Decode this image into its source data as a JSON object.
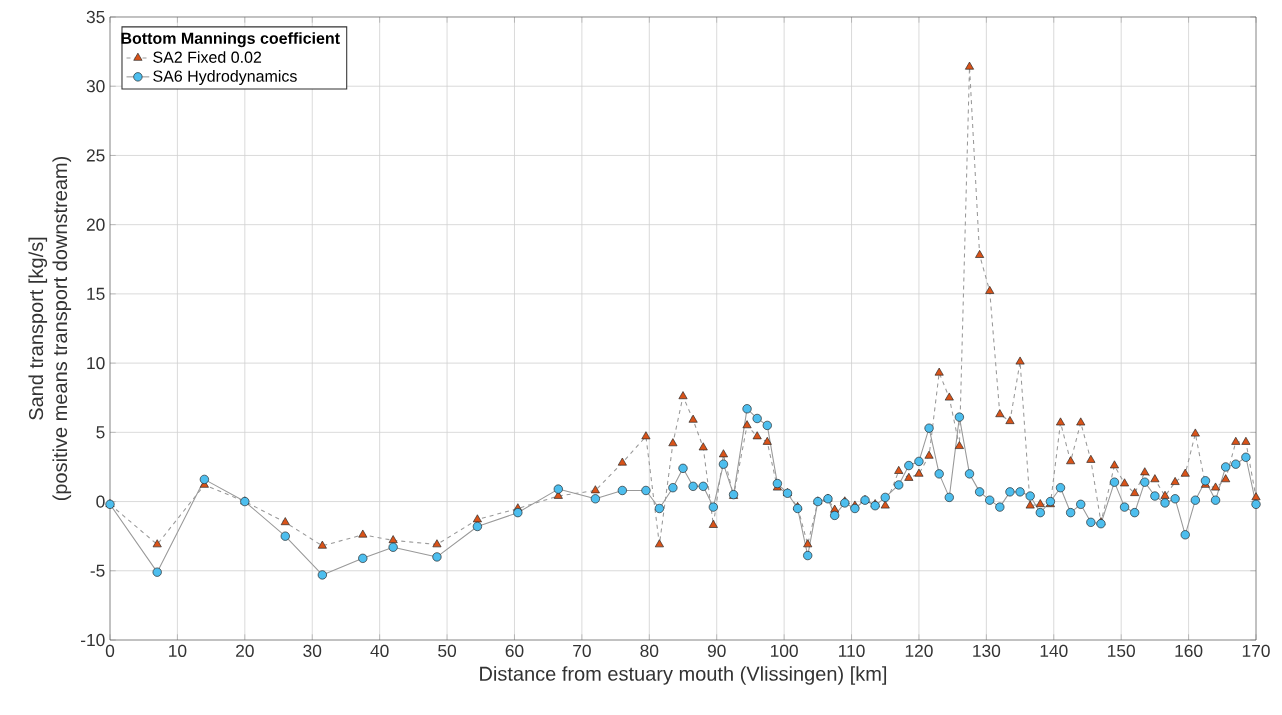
{
  "chart_data": {
    "type": "line",
    "xlabel": "Distance from estuary mouth (Vlissingen) [km]",
    "ylabel": "Sand transport [kg/s]\n(positive means transport downstream)",
    "legend_title": "**Bottom Mannings coefficient**",
    "legend": "top left",
    "grid": true,
    "x": [
      0,
      7,
      14,
      20,
      26,
      31.5,
      37.5,
      42,
      48.5,
      54.5,
      60.5,
      66.5,
      72,
      76,
      79.5,
      81.5,
      83.5,
      85,
      86.5,
      88,
      89.5,
      91,
      92.5,
      94.5,
      96,
      97.5,
      99,
      100.5,
      102,
      103.5,
      105,
      106.5,
      107.5,
      109,
      110.5,
      112,
      113.5,
      115,
      117,
      118.5,
      120,
      121.5,
      123,
      124.5,
      126,
      127.5,
      129,
      130.5,
      132,
      133.5,
      135,
      136.5,
      138,
      139.5,
      141,
      142.5,
      144,
      145.5,
      147,
      149,
      150.5,
      152,
      153.5,
      155,
      156.5,
      158,
      159.5,
      161,
      162.5,
      164,
      165.5,
      167,
      168.5,
      170
    ],
    "series": [
      {
        "name": "SA2 Fixed 0.02",
        "color": "#d95319",
        "marker": "triangle",
        "line_style": "dashed",
        "values": [
          -0.2,
          -3.1,
          1.2,
          0,
          -1.5,
          -3.2,
          -2.4,
          -2.8,
          -3.1,
          -1.3,
          -0.5,
          0.4,
          0.8,
          2.8,
          4.7,
          -3.1,
          4.2,
          7.6,
          5.9,
          3.9,
          -1.7,
          3.4,
          0.4,
          5.5,
          4.7,
          4.3,
          1.0,
          0.6,
          -0.4,
          -3.1,
          0.0,
          0.2,
          -0.6,
          0.0,
          -0.3,
          0.1,
          -0.2,
          -0.3,
          2.2,
          1.7,
          2.0,
          3.3,
          9.3,
          7.5,
          4.0,
          31.4,
          17.8,
          15.2,
          6.3,
          5.8,
          10.1,
          -0.3,
          -0.2,
          -0.2,
          5.7,
          2.9,
          5.7,
          3.0,
          -1.5,
          2.6,
          1.3,
          0.6,
          2.1,
          1.6,
          0.4,
          1.4,
          2.0,
          4.9,
          1.2,
          1.0,
          1.6,
          4.3,
          4.3,
          0.3
        ]
      },
      {
        "name": "SA6 Hydrodynamics",
        "color": "#4dbeee",
        "marker": "circle",
        "line_style": "solid",
        "values": [
          -0.2,
          -5.1,
          1.6,
          0,
          -2.5,
          -5.3,
          -4.1,
          -3.3,
          -4.0,
          -1.8,
          -0.8,
          0.9,
          0.2,
          0.8,
          0.8,
          -0.5,
          1.0,
          2.4,
          1.1,
          1.1,
          -0.4,
          2.7,
          0.5,
          6.7,
          6.0,
          5.5,
          1.3,
          0.6,
          -0.5,
          -3.9,
          0.0,
          0.2,
          -1.0,
          -0.1,
          -0.5,
          0.1,
          -0.3,
          0.3,
          1.2,
          2.6,
          2.9,
          5.3,
          2.0,
          0.3,
          6.1,
          2.0,
          0.7,
          0.1,
          -0.4,
          0.7,
          0.7,
          0.4,
          -0.8,
          0.0,
          1.0,
          -0.8,
          -0.2,
          -1.5,
          -1.6,
          1.4,
          -0.4,
          -0.8,
          1.4,
          0.4,
          -0.1,
          0.2,
          -2.4,
          0.1,
          1.5,
          0.1,
          2.5,
          2.7,
          3.2,
          -0.2
        ]
      }
    ],
    "xlim": [
      0,
      170
    ],
    "xticks": [
      0,
      10,
      20,
      30,
      40,
      50,
      60,
      70,
      80,
      90,
      100,
      110,
      120,
      130,
      140,
      150,
      160,
      170
    ],
    "ylim": [
      -10,
      35
    ],
    "yticks": [
      -10,
      -5,
      0,
      5,
      10,
      15,
      20,
      25,
      30,
      35
    ]
  }
}
